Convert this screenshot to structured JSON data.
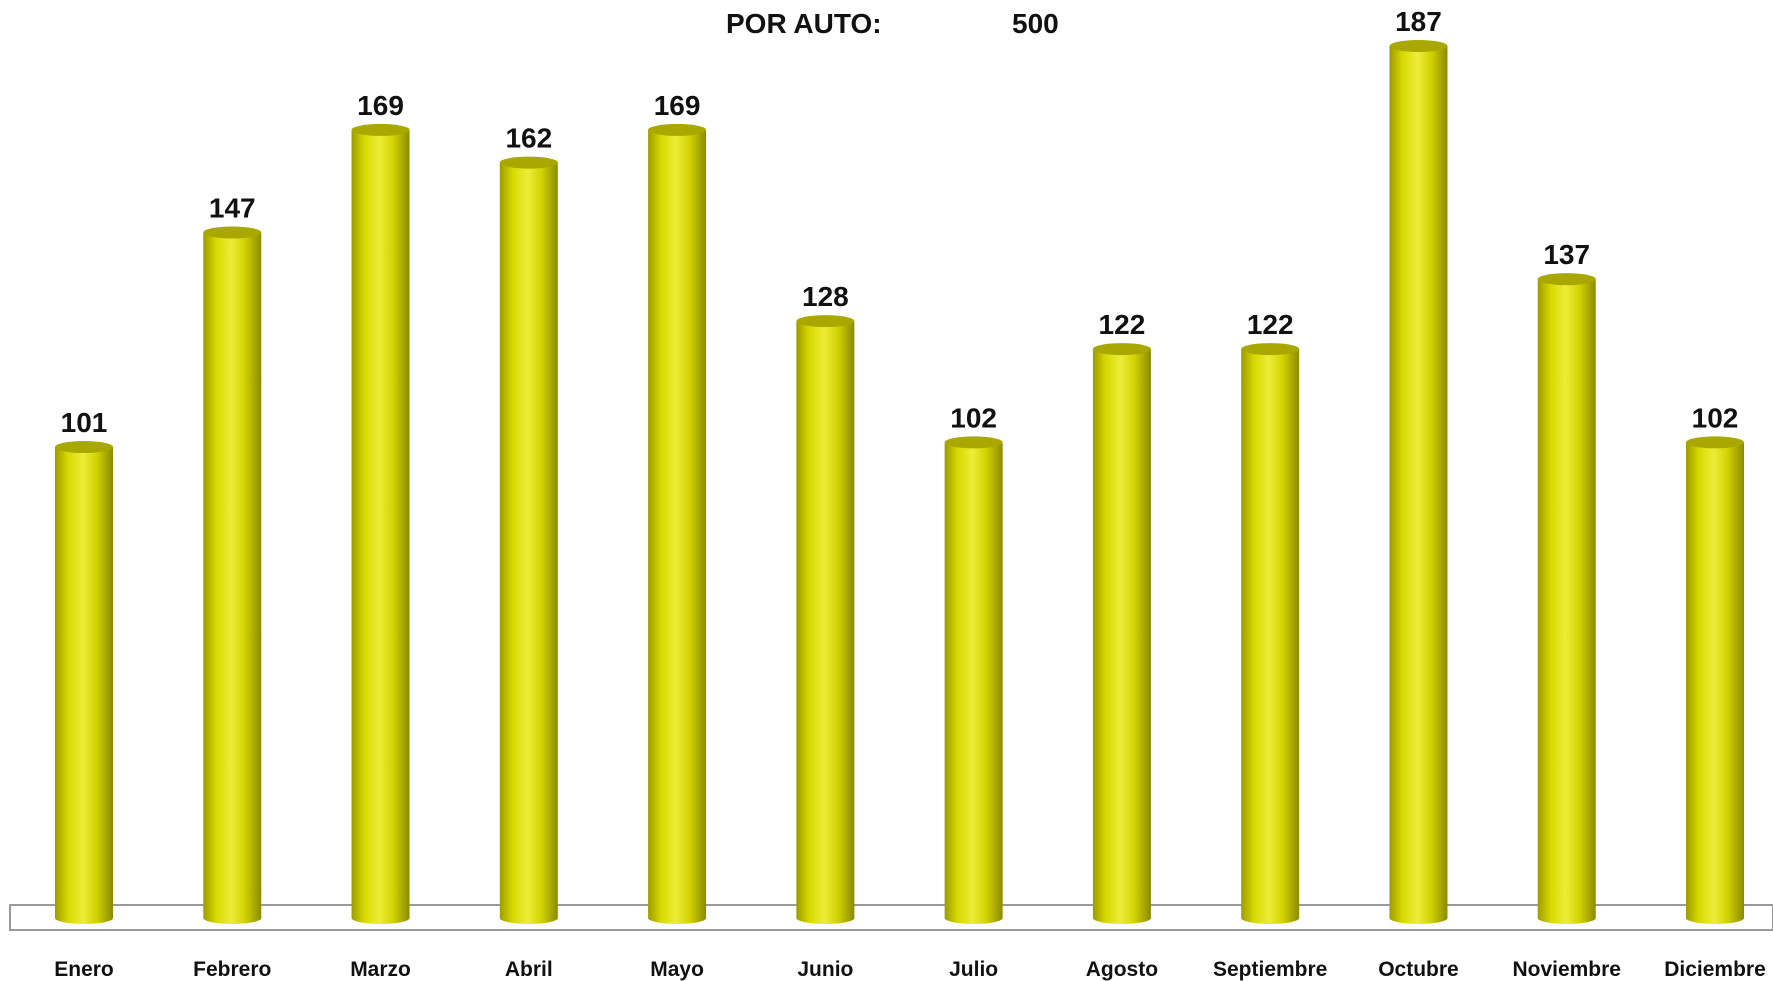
{
  "header": {
    "label": "POR AUTO:",
    "value": "500"
  },
  "colors": {
    "bar": "#d6d600",
    "bar_dark": "#8a8a00",
    "bar_light": "#ecec30",
    "floor": "#9a9a9a"
  },
  "chart_data": {
    "type": "bar",
    "categories": [
      "Enero",
      "Febrero",
      "Marzo",
      "Abril",
      "Mayo",
      "Junio",
      "Julio",
      "Agosto",
      "Septiembre",
      "Octubre",
      "Noviembre",
      "Diciembre"
    ],
    "values": [
      101,
      147,
      169,
      162,
      169,
      128,
      102,
      122,
      122,
      187,
      137,
      102
    ],
    "title": "",
    "xlabel": "",
    "ylabel": "",
    "ylim": [
      0,
      187
    ],
    "grid": false,
    "legend": "none"
  }
}
